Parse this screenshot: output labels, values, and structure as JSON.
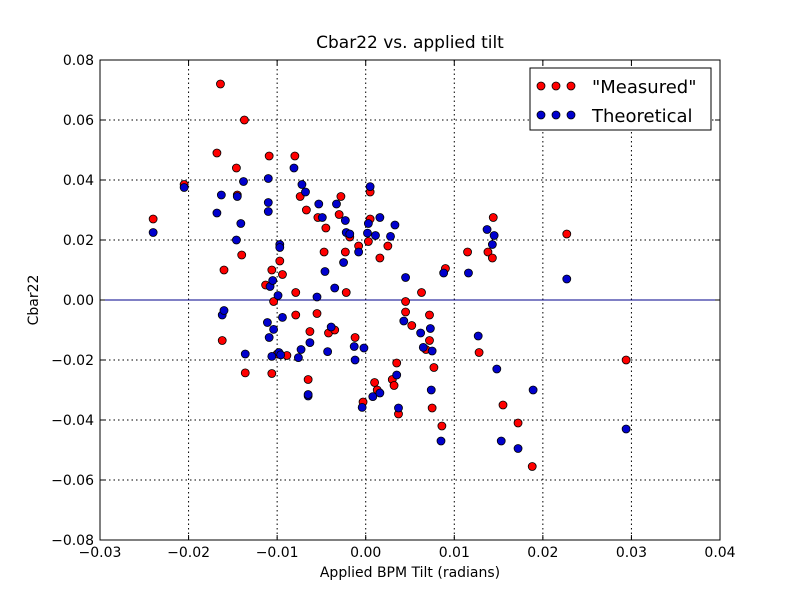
{
  "chart_data": {
    "type": "scatter",
    "title": "Cbar22 vs. applied tilt",
    "xlabel": "Applied BPM Tilt (radians)",
    "ylabel": "Cbar22",
    "xlim": [
      -0.03,
      0.04
    ],
    "ylim": [
      -0.08,
      0.08
    ],
    "grid": true,
    "legend_position": "top-right",
    "x_ticks": [
      -0.03,
      -0.02,
      -0.01,
      0.0,
      0.01,
      0.02,
      0.03,
      0.04
    ],
    "x_tick_labels": [
      "−0.03",
      "−0.02",
      "−0.01",
      "0.00",
      "0.01",
      "0.02",
      "0.03",
      "0.04"
    ],
    "y_ticks": [
      -0.08,
      -0.06,
      -0.04,
      -0.02,
      0.0,
      0.02,
      0.04,
      0.06,
      0.08
    ],
    "y_tick_labels": [
      "−0.08",
      "−0.06",
      "−0.04",
      "−0.02",
      "0.00",
      "0.02",
      "0.04",
      "0.06",
      "0.08"
    ],
    "reference_line": {
      "y": 0.0,
      "color": "#00008b"
    },
    "series": [
      {
        "name": "\"Measured\"",
        "color": "#ff0000",
        "points": [
          [
            -0.024,
            0.027
          ],
          [
            -0.0205,
            0.0385
          ],
          [
            -0.0168,
            0.049
          ],
          [
            -0.0164,
            0.072
          ],
          [
            -0.0162,
            -0.0135
          ],
          [
            -0.016,
            0.01
          ],
          [
            -0.0146,
            0.044
          ],
          [
            -0.0145,
            0.035
          ],
          [
            -0.014,
            0.015
          ],
          [
            -0.0137,
            0.06
          ],
          [
            -0.0136,
            -0.0243
          ],
          [
            -0.0113,
            0.005
          ],
          [
            -0.0109,
            0.048
          ],
          [
            -0.0106,
            0.01
          ],
          [
            -0.0106,
            -0.0245
          ],
          [
            -0.0104,
            -0.0005
          ],
          [
            -0.01,
            -0.018
          ],
          [
            -0.0097,
            0.013
          ],
          [
            -0.0094,
            0.0085
          ],
          [
            -0.0089,
            -0.0185
          ],
          [
            -0.008,
            0.048
          ],
          [
            -0.0079,
            0.0025
          ],
          [
            -0.0079,
            -0.005
          ],
          [
            -0.0074,
            0.0345
          ],
          [
            -0.0067,
            0.03
          ],
          [
            -0.0063,
            -0.0105
          ],
          [
            -0.0065,
            -0.0265
          ],
          [
            -0.0054,
            0.0275
          ],
          [
            -0.0055,
            -0.0045
          ],
          [
            -0.0045,
            0.024
          ],
          [
            -0.0047,
            0.016
          ],
          [
            -0.0042,
            -0.011
          ],
          [
            -0.0035,
            -0.01
          ],
          [
            -0.003,
            0.0285
          ],
          [
            -0.0028,
            0.0345
          ],
          [
            -0.0023,
            0.016
          ],
          [
            -0.0022,
            0.0025
          ],
          [
            -0.0018,
            0.021
          ],
          [
            -0.0012,
            -0.0125
          ],
          [
            -0.0008,
            0.018
          ],
          [
            -0.0003,
            -0.034
          ],
          [
            0.0003,
            0.0195
          ],
          [
            0.0005,
            0.036
          ],
          [
            0.0005,
            0.027
          ],
          [
            0.001,
            -0.0275
          ],
          [
            0.0013,
            -0.03
          ],
          [
            0.0016,
            0.014
          ],
          [
            0.0025,
            0.018
          ],
          [
            0.003,
            -0.0265
          ],
          [
            0.0032,
            -0.0285
          ],
          [
            0.0035,
            -0.021
          ],
          [
            0.0037,
            -0.038
          ],
          [
            0.0045,
            -0.0005
          ],
          [
            0.0045,
            -0.004
          ],
          [
            0.0052,
            -0.0085
          ],
          [
            0.0063,
            0.0025
          ],
          [
            0.0068,
            -0.0165
          ],
          [
            0.0072,
            -0.005
          ],
          [
            0.0072,
            -0.0135
          ],
          [
            0.0075,
            -0.036
          ],
          [
            0.0077,
            -0.0225
          ],
          [
            0.0086,
            -0.042
          ],
          [
            0.009,
            0.0105
          ],
          [
            0.0115,
            0.016
          ],
          [
            0.0128,
            -0.0175
          ],
          [
            0.0138,
            0.016
          ],
          [
            0.0143,
            0.014
          ],
          [
            0.0144,
            0.0275
          ],
          [
            0.0155,
            -0.035
          ],
          [
            0.0172,
            -0.041
          ],
          [
            0.0188,
            -0.0555
          ],
          [
            0.0227,
            0.022
          ],
          [
            0.0294,
            -0.02
          ]
        ]
      },
      {
        "name": "Theoretical",
        "color": "#0000cd",
        "points": [
          [
            -0.024,
            0.0225
          ],
          [
            -0.0205,
            0.0375
          ],
          [
            -0.0168,
            0.029
          ],
          [
            -0.0163,
            0.035
          ],
          [
            -0.0162,
            -0.005
          ],
          [
            -0.016,
            -0.0035
          ],
          [
            -0.0146,
            0.02
          ],
          [
            -0.0145,
            0.0345
          ],
          [
            -0.0141,
            0.0255
          ],
          [
            -0.0138,
            0.0395
          ],
          [
            -0.0136,
            -0.018
          ],
          [
            -0.0111,
            -0.0075
          ],
          [
            -0.011,
            0.0325
          ],
          [
            -0.011,
            0.0405
          ],
          [
            -0.011,
            0.0295
          ],
          [
            -0.0109,
            -0.0125
          ],
          [
            -0.0108,
            0.0045
          ],
          [
            -0.0106,
            -0.0188
          ],
          [
            -0.0105,
            0.0065
          ],
          [
            -0.0104,
            -0.0098
          ],
          [
            -0.0099,
            0.0015
          ],
          [
            -0.0098,
            -0.0175
          ],
          [
            -0.0097,
            0.0185
          ],
          [
            -0.0097,
            0.0175
          ],
          [
            -0.0096,
            -0.0183
          ],
          [
            -0.0094,
            -0.0058
          ],
          [
            -0.0081,
            0.044
          ],
          [
            -0.0076,
            -0.0192
          ],
          [
            -0.0073,
            -0.0165
          ],
          [
            -0.0072,
            0.0385
          ],
          [
            -0.0068,
            0.036
          ],
          [
            -0.0065,
            -0.032
          ],
          [
            -0.0065,
            -0.0315
          ],
          [
            -0.0063,
            -0.0142
          ],
          [
            -0.0055,
            0.001
          ],
          [
            -0.0053,
            0.032
          ],
          [
            -0.0049,
            0.0275
          ],
          [
            -0.0046,
            0.0095
          ],
          [
            -0.0043,
            -0.0172
          ],
          [
            -0.0039,
            -0.009
          ],
          [
            -0.0035,
            0.004
          ],
          [
            -0.0033,
            0.032
          ],
          [
            -0.0025,
            0.0125
          ],
          [
            -0.0023,
            0.0265
          ],
          [
            -0.0022,
            0.0225
          ],
          [
            -0.0018,
            0.022
          ],
          [
            -0.0013,
            -0.0155
          ],
          [
            -0.0012,
            -0.02
          ],
          [
            -0.0008,
            0.016
          ],
          [
            -0.0004,
            -0.0358
          ],
          [
            -0.0002,
            -0.016
          ],
          [
            0.0002,
            0.0223
          ],
          [
            0.0003,
            0.0255
          ],
          [
            0.0005,
            0.0378
          ],
          [
            0.0008,
            -0.0322
          ],
          [
            0.0011,
            0.0215
          ],
          [
            0.0016,
            0.0275
          ],
          [
            0.0016,
            -0.031
          ],
          [
            0.0028,
            0.0212
          ],
          [
            0.0033,
            0.025
          ],
          [
            0.0035,
            -0.025
          ],
          [
            0.0037,
            -0.036
          ],
          [
            0.0043,
            -0.007
          ],
          [
            0.0045,
            0.0075
          ],
          [
            0.0062,
            -0.011
          ],
          [
            0.0065,
            -0.0158
          ],
          [
            0.0073,
            -0.0095
          ],
          [
            0.0074,
            -0.03
          ],
          [
            0.0075,
            -0.017
          ],
          [
            0.0085,
            -0.047
          ],
          [
            0.0088,
            0.009
          ],
          [
            0.0116,
            0.009
          ],
          [
            0.0127,
            -0.012
          ],
          [
            0.0137,
            0.0235
          ],
          [
            0.0143,
            0.0185
          ],
          [
            0.0145,
            0.0215
          ],
          [
            0.0148,
            -0.023
          ],
          [
            0.0153,
            -0.047
          ],
          [
            0.0172,
            -0.0495
          ],
          [
            0.0189,
            -0.03
          ],
          [
            0.0227,
            0.007
          ],
          [
            0.0294,
            -0.043
          ]
        ]
      }
    ]
  }
}
